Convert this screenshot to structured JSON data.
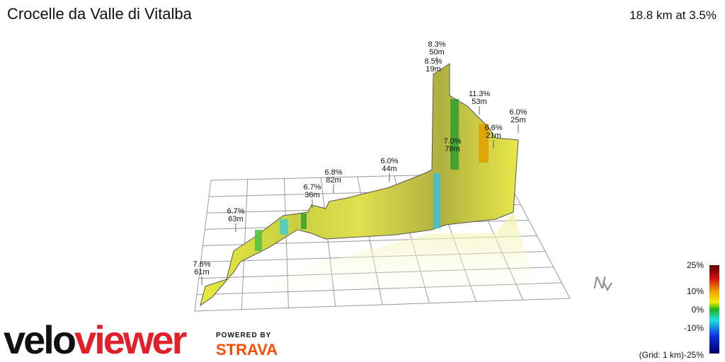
{
  "header": {
    "title": "Crocelle da Valle di Vitalba",
    "summary": "18.8 km at 3.5%"
  },
  "annotations": [
    {
      "grade": "7.6%",
      "length": "61m"
    },
    {
      "grade": "6.7%",
      "length": "63m"
    },
    {
      "grade": "6.7%",
      "length": "36m"
    },
    {
      "grade": "6.8%",
      "length": "82m"
    },
    {
      "grade": "6.0%",
      "length": "44m"
    },
    {
      "grade": "8.3%",
      "length": "50m"
    },
    {
      "grade": "8.5%",
      "length": "19m"
    },
    {
      "grade": "11.3%",
      "length": "53m"
    },
    {
      "grade": "6.6%",
      "length": "21m"
    },
    {
      "grade": "7.0%",
      "length": "78m"
    },
    {
      "grade": "6.0%",
      "length": "25m"
    }
  ],
  "legend": {
    "labels": [
      "25%",
      "10%",
      "0%",
      "-10%",
      "-25%"
    ],
    "grid_note": "(Grid: 1 km)"
  },
  "compass": "N",
  "logo": {
    "velo": "velo",
    "viewer": "viewer",
    "powered_by": "POWERED BY",
    "strava": "STRAVA"
  }
}
